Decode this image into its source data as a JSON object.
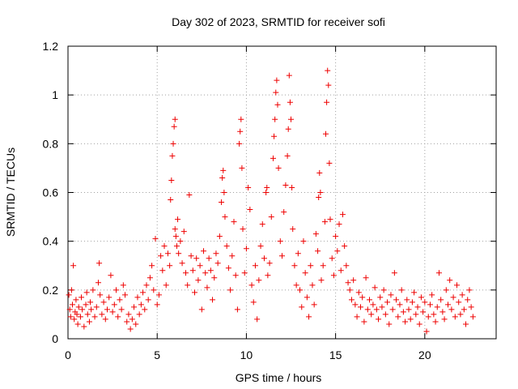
{
  "chart_data": {
    "type": "scatter",
    "title": "Day 302 of 2023, SRMTID for receiver sofi",
    "xlabel": "GPS time / hours",
    "ylabel": "SRMTID / TECUs",
    "xlim": [
      0,
      24
    ],
    "ylim": [
      0,
      1.2
    ],
    "xticks": [
      0,
      5,
      10,
      15,
      20
    ],
    "xtick_labels": [
      "0",
      "5",
      "10",
      "15",
      "20"
    ],
    "yticks": [
      0,
      0.2,
      0.4,
      0.6,
      0.8,
      1.0,
      1.2
    ],
    "ytick_labels": [
      "0",
      "0.2",
      "0.4",
      "0.6",
      "0.8",
      "1",
      "1.2"
    ],
    "grid": true,
    "marker": "+",
    "series": [
      {
        "name": "SRMTID",
        "color": "#ee0000",
        "points": [
          [
            0.05,
            0.18
          ],
          [
            0.1,
            0.12
          ],
          [
            0.15,
            0.09
          ],
          [
            0.2,
            0.2
          ],
          [
            0.25,
            0.14
          ],
          [
            0.3,
            0.3
          ],
          [
            0.35,
            0.08
          ],
          [
            0.4,
            0.11
          ],
          [
            0.45,
            0.16
          ],
          [
            0.5,
            0.1
          ],
          [
            0.55,
            0.06
          ],
          [
            0.6,
            0.13
          ],
          [
            0.7,
            0.09
          ],
          [
            0.75,
            0.17
          ],
          [
            0.8,
            0.12
          ],
          [
            0.9,
            0.05
          ],
          [
            1.0,
            0.14
          ],
          [
            1.05,
            0.19
          ],
          [
            1.1,
            0.1
          ],
          [
            1.2,
            0.07
          ],
          [
            1.25,
            0.15
          ],
          [
            1.3,
            0.12
          ],
          [
            1.4,
            0.2
          ],
          [
            1.5,
            0.09
          ],
          [
            1.6,
            0.13
          ],
          [
            1.7,
            0.23
          ],
          [
            1.75,
            0.31
          ],
          [
            1.8,
            0.18
          ],
          [
            1.9,
            0.1
          ],
          [
            2.0,
            0.15
          ],
          [
            2.1,
            0.08
          ],
          [
            2.2,
            0.12
          ],
          [
            2.3,
            0.17
          ],
          [
            2.4,
            0.26
          ],
          [
            2.5,
            0.11
          ],
          [
            2.6,
            0.14
          ],
          [
            2.7,
            0.2
          ],
          [
            2.8,
            0.09
          ],
          [
            2.9,
            0.16
          ],
          [
            3.0,
            0.12
          ],
          [
            3.1,
            0.22
          ],
          [
            3.2,
            0.18
          ],
          [
            3.3,
            0.07
          ],
          [
            3.4,
            0.1
          ],
          [
            3.5,
            0.04
          ],
          [
            3.6,
            0.08
          ],
          [
            3.7,
            0.13
          ],
          [
            3.8,
            0.06
          ],
          [
            3.9,
            0.17
          ],
          [
            4.0,
            0.1
          ],
          [
            4.1,
            0.14
          ],
          [
            4.2,
            0.19
          ],
          [
            4.3,
            0.12
          ],
          [
            4.4,
            0.22
          ],
          [
            4.5,
            0.16
          ],
          [
            4.6,
            0.25
          ],
          [
            4.7,
            0.3
          ],
          [
            4.8,
            0.2
          ],
          [
            4.9,
            0.41
          ],
          [
            5.0,
            0.14
          ],
          [
            5.1,
            0.18
          ],
          [
            5.2,
            0.34
          ],
          [
            5.3,
            0.28
          ],
          [
            5.4,
            0.38
          ],
          [
            5.5,
            0.22
          ],
          [
            5.6,
            0.35
          ],
          [
            5.7,
            0.3
          ],
          [
            5.75,
            0.57
          ],
          [
            5.8,
            0.65
          ],
          [
            5.85,
            0.75
          ],
          [
            5.9,
            0.8
          ],
          [
            5.95,
            0.87
          ],
          [
            6.0,
            0.9
          ],
          [
            6.0,
            0.45
          ],
          [
            6.05,
            0.42
          ],
          [
            6.1,
            0.38
          ],
          [
            6.15,
            0.49
          ],
          [
            6.2,
            0.35
          ],
          [
            6.3,
            0.4
          ],
          [
            6.4,
            0.31
          ],
          [
            6.5,
            0.44
          ],
          [
            6.6,
            0.27
          ],
          [
            6.7,
            0.22
          ],
          [
            6.8,
            0.59
          ],
          [
            6.9,
            0.34
          ],
          [
            7.0,
            0.28
          ],
          [
            7.1,
            0.19
          ],
          [
            7.2,
            0.33
          ],
          [
            7.3,
            0.24
          ],
          [
            7.4,
            0.3
          ],
          [
            7.5,
            0.12
          ],
          [
            7.6,
            0.36
          ],
          [
            7.7,
            0.27
          ],
          [
            7.8,
            0.21
          ],
          [
            7.9,
            0.33
          ],
          [
            8.0,
            0.28
          ],
          [
            8.1,
            0.16
          ],
          [
            8.2,
            0.25
          ],
          [
            8.3,
            0.35
          ],
          [
            8.4,
            0.31
          ],
          [
            8.5,
            0.42
          ],
          [
            8.6,
            0.56
          ],
          [
            8.65,
            0.66
          ],
          [
            8.7,
            0.69
          ],
          [
            8.75,
            0.6
          ],
          [
            8.8,
            0.5
          ],
          [
            8.9,
            0.38
          ],
          [
            9.0,
            0.29
          ],
          [
            9.1,
            0.2
          ],
          [
            9.2,
            0.34
          ],
          [
            9.3,
            0.48
          ],
          [
            9.4,
            0.26
          ],
          [
            9.5,
            0.12
          ],
          [
            9.6,
            0.8
          ],
          [
            9.65,
            0.85
          ],
          [
            9.7,
            0.9
          ],
          [
            9.75,
            0.7
          ],
          [
            9.8,
            0.45
          ],
          [
            9.9,
            0.27
          ],
          [
            10.0,
            0.37
          ],
          [
            10.1,
            0.62
          ],
          [
            10.2,
            0.53
          ],
          [
            10.3,
            0.22
          ],
          [
            10.4,
            0.15
          ],
          [
            10.5,
            0.3
          ],
          [
            10.6,
            0.08
          ],
          [
            10.7,
            0.24
          ],
          [
            10.8,
            0.38
          ],
          [
            10.9,
            0.47
          ],
          [
            11.0,
            0.33
          ],
          [
            11.1,
            0.6
          ],
          [
            11.15,
            0.62
          ],
          [
            11.2,
            0.26
          ],
          [
            11.3,
            0.31
          ],
          [
            11.4,
            0.5
          ],
          [
            11.5,
            0.74
          ],
          [
            11.55,
            0.83
          ],
          [
            11.6,
            0.9
          ],
          [
            11.65,
            1.01
          ],
          [
            11.7,
            1.06
          ],
          [
            11.75,
            0.96
          ],
          [
            11.8,
            0.7
          ],
          [
            11.9,
            0.4
          ],
          [
            12.0,
            0.34
          ],
          [
            12.1,
            0.52
          ],
          [
            12.2,
            0.63
          ],
          [
            12.3,
            0.75
          ],
          [
            12.35,
            0.86
          ],
          [
            12.4,
            1.08
          ],
          [
            12.45,
            0.97
          ],
          [
            12.5,
            0.9
          ],
          [
            12.55,
            0.62
          ],
          [
            12.6,
            0.45
          ],
          [
            12.7,
            0.3
          ],
          [
            12.8,
            0.22
          ],
          [
            12.9,
            0.35
          ],
          [
            13.0,
            0.2
          ],
          [
            13.1,
            0.13
          ],
          [
            13.2,
            0.4
          ],
          [
            13.3,
            0.27
          ],
          [
            13.4,
            0.17
          ],
          [
            13.5,
            0.09
          ],
          [
            13.6,
            0.3
          ],
          [
            13.7,
            0.22
          ],
          [
            13.8,
            0.14
          ],
          [
            13.9,
            0.43
          ],
          [
            14.0,
            0.36
          ],
          [
            14.05,
            0.58
          ],
          [
            14.1,
            0.68
          ],
          [
            14.15,
            0.6
          ],
          [
            14.2,
            0.24
          ],
          [
            14.3,
            0.3
          ],
          [
            14.4,
            0.48
          ],
          [
            14.45,
            0.84
          ],
          [
            14.5,
            0.97
          ],
          [
            14.55,
            1.1
          ],
          [
            14.6,
            1.04
          ],
          [
            14.65,
            0.72
          ],
          [
            14.7,
            0.49
          ],
          [
            14.8,
            0.33
          ],
          [
            14.9,
            0.26
          ],
          [
            15.0,
            0.42
          ],
          [
            15.1,
            0.36
          ],
          [
            15.2,
            0.47
          ],
          [
            15.3,
            0.28
          ],
          [
            15.4,
            0.51
          ],
          [
            15.5,
            0.38
          ],
          [
            15.6,
            0.3
          ],
          [
            15.7,
            0.23
          ],
          [
            15.8,
            0.2
          ],
          [
            15.9,
            0.16
          ],
          [
            16.0,
            0.24
          ],
          [
            16.1,
            0.14
          ],
          [
            16.2,
            0.09
          ],
          [
            16.3,
            0.19
          ],
          [
            16.4,
            0.13
          ],
          [
            16.5,
            0.17
          ],
          [
            16.6,
            0.07
          ],
          [
            16.7,
            0.25
          ],
          [
            16.8,
            0.12
          ],
          [
            16.9,
            0.16
          ],
          [
            17.0,
            0.1
          ],
          [
            17.1,
            0.14
          ],
          [
            17.2,
            0.21
          ],
          [
            17.3,
            0.12
          ],
          [
            17.4,
            0.08
          ],
          [
            17.5,
            0.17
          ],
          [
            17.6,
            0.13
          ],
          [
            17.7,
            0.2
          ],
          [
            17.8,
            0.1
          ],
          [
            17.9,
            0.15
          ],
          [
            18.0,
            0.06
          ],
          [
            18.1,
            0.18
          ],
          [
            18.2,
            0.12
          ],
          [
            18.3,
            0.27
          ],
          [
            18.4,
            0.16
          ],
          [
            18.5,
            0.09
          ],
          [
            18.6,
            0.14
          ],
          [
            18.7,
            0.2
          ],
          [
            18.8,
            0.11
          ],
          [
            18.9,
            0.07
          ],
          [
            19.0,
            0.16
          ],
          [
            19.1,
            0.12
          ],
          [
            19.2,
            0.08
          ],
          [
            19.3,
            0.15
          ],
          [
            19.4,
            0.19
          ],
          [
            19.5,
            0.1
          ],
          [
            19.6,
            0.13
          ],
          [
            19.7,
            0.06
          ],
          [
            19.8,
            0.17
          ],
          [
            19.9,
            0.11
          ],
          [
            20.0,
            0.15
          ],
          [
            20.1,
            0.03
          ],
          [
            20.2,
            0.09
          ],
          [
            20.3,
            0.14
          ],
          [
            20.4,
            0.18
          ],
          [
            20.5,
            0.1
          ],
          [
            20.6,
            0.07
          ],
          [
            20.7,
            0.13
          ],
          [
            20.8,
            0.27
          ],
          [
            20.9,
            0.16
          ],
          [
            21.0,
            0.11
          ],
          [
            21.1,
            0.08
          ],
          [
            21.2,
            0.2
          ],
          [
            21.3,
            0.14
          ],
          [
            21.4,
            0.24
          ],
          [
            21.5,
            0.12
          ],
          [
            21.6,
            0.17
          ],
          [
            21.7,
            0.09
          ],
          [
            21.8,
            0.22
          ],
          [
            21.9,
            0.15
          ],
          [
            22.0,
            0.1
          ],
          [
            22.1,
            0.18
          ],
          [
            22.2,
            0.12
          ],
          [
            22.3,
            0.06
          ],
          [
            22.4,
            0.16
          ],
          [
            22.5,
            0.2
          ],
          [
            22.6,
            0.13
          ],
          [
            22.7,
            0.09
          ]
        ]
      }
    ]
  }
}
